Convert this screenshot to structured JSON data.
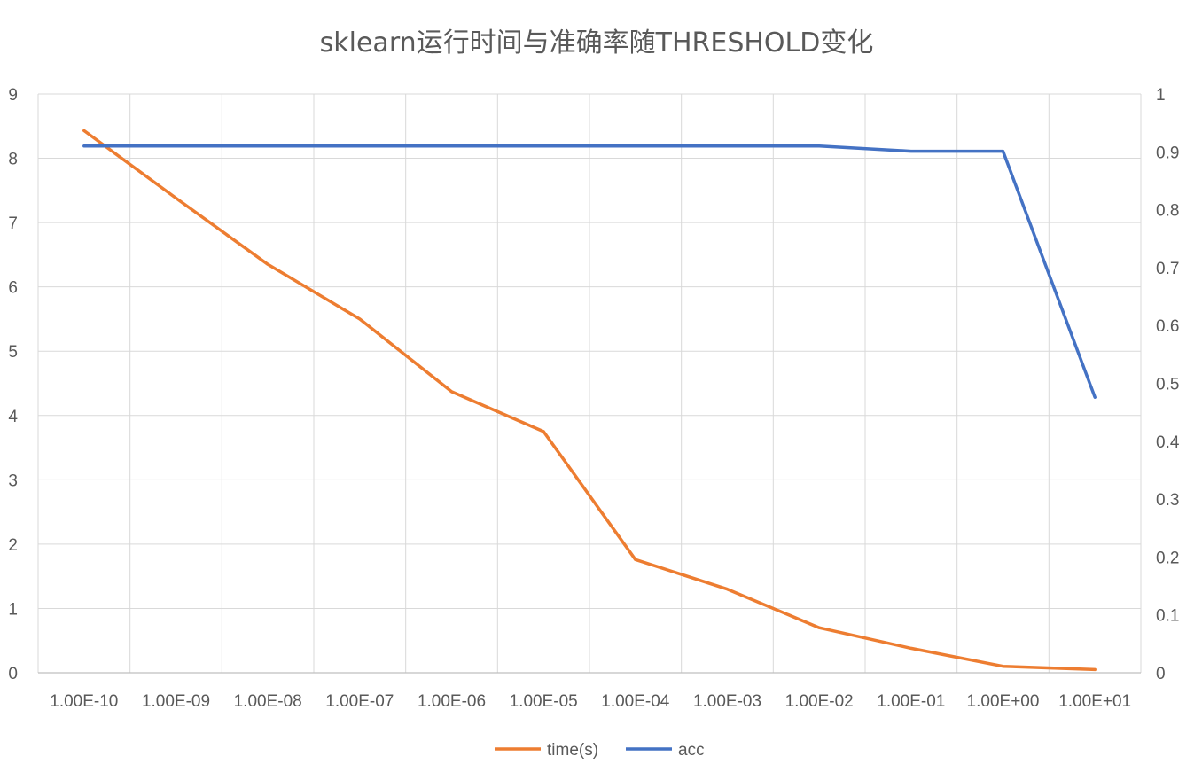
{
  "chart_data": {
    "type": "line",
    "title": "sklearn运行时间与准确率随THRESHOLD变化",
    "categories": [
      "1.00E-10",
      "1.00E-09",
      "1.00E-08",
      "1.00E-07",
      "1.00E-06",
      "1.00E-05",
      "1.00E-04",
      "1.00E-03",
      "1.00E-02",
      "1.00E-01",
      "1.00E+00",
      "1.00E+01"
    ],
    "y_left": {
      "ylim": [
        0,
        9
      ],
      "ticks": [
        "0",
        "1",
        "2",
        "3",
        "4",
        "5",
        "6",
        "7",
        "8",
        "9"
      ]
    },
    "y_right": {
      "ylim": [
        0,
        1
      ],
      "ticks": [
        "0",
        "0.1",
        "0.2",
        "0.3",
        "0.4",
        "0.5",
        "0.6",
        "0.7",
        "0.8",
        "0.9",
        "1"
      ]
    },
    "series": [
      {
        "name": "time(s)",
        "axis": "left",
        "color": "#ED7D31",
        "values": [
          8.43,
          7.38,
          6.35,
          5.5,
          4.37,
          3.75,
          1.76,
          1.3,
          0.7,
          0.38,
          0.1,
          0.05
        ]
      },
      {
        "name": "acc",
        "axis": "right",
        "color": "#4472C4",
        "values": [
          0.91,
          0.91,
          0.91,
          0.91,
          0.91,
          0.91,
          0.91,
          0.91,
          0.91,
          0.901,
          0.901,
          0.476
        ]
      }
    ],
    "grid": true,
    "legend": "bottom"
  }
}
